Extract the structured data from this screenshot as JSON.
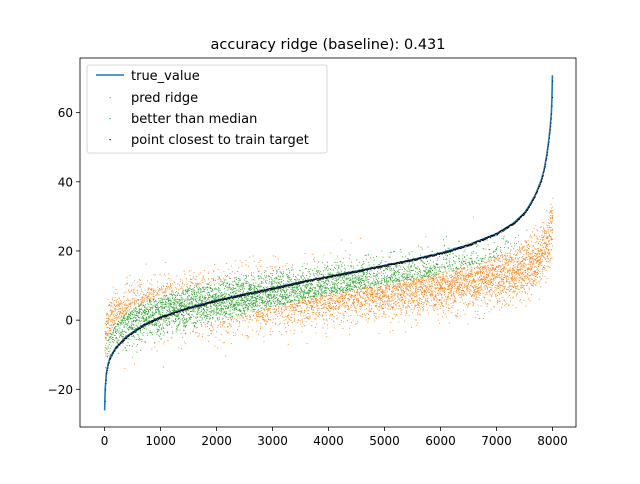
{
  "chart_data": {
    "type": "scatter",
    "title": "accuracy ridge (baseline): 0.431",
    "xlabel": "",
    "ylabel": "",
    "xlim": [
      -440,
      8420
    ],
    "ylim": [
      -30.9,
      75.8
    ],
    "x_ticks": [
      0,
      1000,
      2000,
      3000,
      4000,
      5000,
      6000,
      7000,
      8000
    ],
    "x_tick_labels": [
      "0",
      "1000",
      "2000",
      "3000",
      "4000",
      "5000",
      "6000",
      "7000",
      "8000"
    ],
    "y_ticks": [
      -20,
      0,
      20,
      40,
      60
    ],
    "y_tick_labels": [
      "−20",
      "0",
      "20",
      "40",
      "60"
    ],
    "grid": false,
    "legend_position": "top-left",
    "n_points": 8000,
    "series": [
      {
        "name": "true_value",
        "kind": "line",
        "color": "#1f77b4",
        "x": [
          0,
          10,
          30,
          60,
          100,
          200,
          400,
          700,
          1000,
          1500,
          2000,
          2500,
          3000,
          3500,
          4000,
          4500,
          5000,
          5500,
          6000,
          6500,
          7000,
          7300,
          7500,
          7600,
          7700,
          7800,
          7850,
          7900,
          7930,
          7960,
          7980,
          7990,
          7999
        ],
        "y": [
          -26.1,
          -20.0,
          -15.5,
          -12.8,
          -10.7,
          -7.9,
          -4.6,
          -1.3,
          0.9,
          3.6,
          5.7,
          7.5,
          9.2,
          11.0,
          12.6,
          14.2,
          15.8,
          17.5,
          19.4,
          21.8,
          25.0,
          28.0,
          31.0,
          33.5,
          36.5,
          40.5,
          43.5,
          48.0,
          51.5,
          56.0,
          60.0,
          64.0,
          70.8
        ]
      },
      {
        "name": "pred ridge",
        "kind": "scatter",
        "color": "#ff7f0e"
      },
      {
        "name": "better than median",
        "kind": "scatter",
        "color": "#2ca02c"
      },
      {
        "name": "point closest to train target",
        "kind": "scatter",
        "color": "#000000"
      }
    ]
  }
}
